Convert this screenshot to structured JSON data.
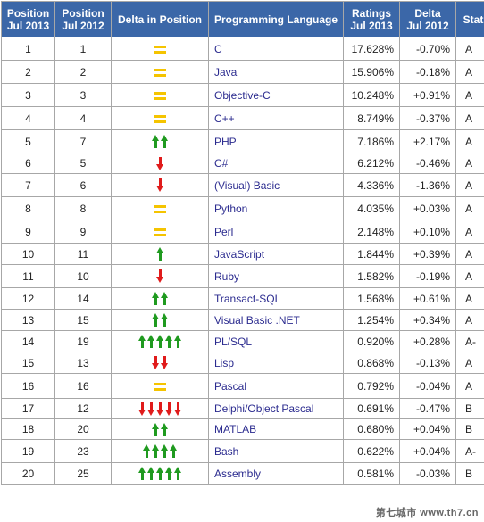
{
  "columns": [
    [
      "Position",
      "Jul 2013"
    ],
    [
      "Position",
      "Jul 2012"
    ],
    [
      "Delta in Position"
    ],
    [
      "Programming Language"
    ],
    [
      "Ratings",
      "Jul 2013"
    ],
    [
      "Delta",
      "Jul 2012"
    ],
    [
      "Status"
    ]
  ],
  "rows": [
    {
      "pos2013": "1",
      "pos2012": "1",
      "change": "same",
      "count": 0,
      "language": "C",
      "rating": "17.628%",
      "delta": "-0.70%",
      "status": "A"
    },
    {
      "pos2013": "2",
      "pos2012": "2",
      "change": "same",
      "count": 0,
      "language": "Java",
      "rating": "15.906%",
      "delta": "-0.18%",
      "status": "A"
    },
    {
      "pos2013": "3",
      "pos2012": "3",
      "change": "same",
      "count": 0,
      "language": "Objective-C",
      "rating": "10.248%",
      "delta": "+0.91%",
      "status": "A"
    },
    {
      "pos2013": "4",
      "pos2012": "4",
      "change": "same",
      "count": 0,
      "language": "C++",
      "rating": "8.749%",
      "delta": "-0.37%",
      "status": "A"
    },
    {
      "pos2013": "5",
      "pos2012": "7",
      "change": "up",
      "count": 2,
      "language": "PHP",
      "rating": "7.186%",
      "delta": "+2.17%",
      "status": "A"
    },
    {
      "pos2013": "6",
      "pos2012": "5",
      "change": "down",
      "count": 1,
      "language": "C#",
      "rating": "6.212%",
      "delta": "-0.46%",
      "status": "A"
    },
    {
      "pos2013": "7",
      "pos2012": "6",
      "change": "down",
      "count": 1,
      "language": "(Visual) Basic",
      "rating": "4.336%",
      "delta": "-1.36%",
      "status": "A"
    },
    {
      "pos2013": "8",
      "pos2012": "8",
      "change": "same",
      "count": 0,
      "language": "Python",
      "rating": "4.035%",
      "delta": "+0.03%",
      "status": "A"
    },
    {
      "pos2013": "9",
      "pos2012": "9",
      "change": "same",
      "count": 0,
      "language": "Perl",
      "rating": "2.148%",
      "delta": "+0.10%",
      "status": "A"
    },
    {
      "pos2013": "10",
      "pos2012": "11",
      "change": "up",
      "count": 1,
      "language": "JavaScript",
      "rating": "1.844%",
      "delta": "+0.39%",
      "status": "A"
    },
    {
      "pos2013": "11",
      "pos2012": "10",
      "change": "down",
      "count": 1,
      "language": "Ruby",
      "rating": "1.582%",
      "delta": "-0.19%",
      "status": "A"
    },
    {
      "pos2013": "12",
      "pos2012": "14",
      "change": "up",
      "count": 2,
      "language": "Transact-SQL",
      "rating": "1.568%",
      "delta": "+0.61%",
      "status": "A"
    },
    {
      "pos2013": "13",
      "pos2012": "15",
      "change": "up",
      "count": 2,
      "language": "Visual Basic .NET",
      "rating": "1.254%",
      "delta": "+0.34%",
      "status": "A"
    },
    {
      "pos2013": "14",
      "pos2012": "19",
      "change": "up",
      "count": 5,
      "language": "PL/SQL",
      "rating": "0.920%",
      "delta": "+0.28%",
      "status": "A-"
    },
    {
      "pos2013": "15",
      "pos2012": "13",
      "change": "down",
      "count": 2,
      "language": "Lisp",
      "rating": "0.868%",
      "delta": "-0.13%",
      "status": "A"
    },
    {
      "pos2013": "16",
      "pos2012": "16",
      "change": "same",
      "count": 0,
      "language": "Pascal",
      "rating": "0.792%",
      "delta": "-0.04%",
      "status": "A"
    },
    {
      "pos2013": "17",
      "pos2012": "12",
      "change": "down",
      "count": 5,
      "language": "Delphi/Object Pascal",
      "rating": "0.691%",
      "delta": "-0.47%",
      "status": "B"
    },
    {
      "pos2013": "18",
      "pos2012": "20",
      "change": "up",
      "count": 2,
      "language": "MATLAB",
      "rating": "0.680%",
      "delta": "+0.04%",
      "status": "B"
    },
    {
      "pos2013": "19",
      "pos2012": "23",
      "change": "up",
      "count": 4,
      "language": "Bash",
      "rating": "0.622%",
      "delta": "+0.04%",
      "status": "A-"
    },
    {
      "pos2013": "20",
      "pos2012": "25",
      "change": "up",
      "count": 5,
      "language": "Assembly",
      "rating": "0.581%",
      "delta": "-0.03%",
      "status": "B"
    }
  ],
  "watermark": "第七城市 www.th7.cn",
  "colors": {
    "header_bg": "#3b67a8",
    "header_text": "#ffffff",
    "language_text": "#2b2b8f",
    "up_arrow": "#1f9a1f",
    "down_arrow": "#e01b1b",
    "same_marker": "#f5c400",
    "border": "#a7a7a7"
  }
}
